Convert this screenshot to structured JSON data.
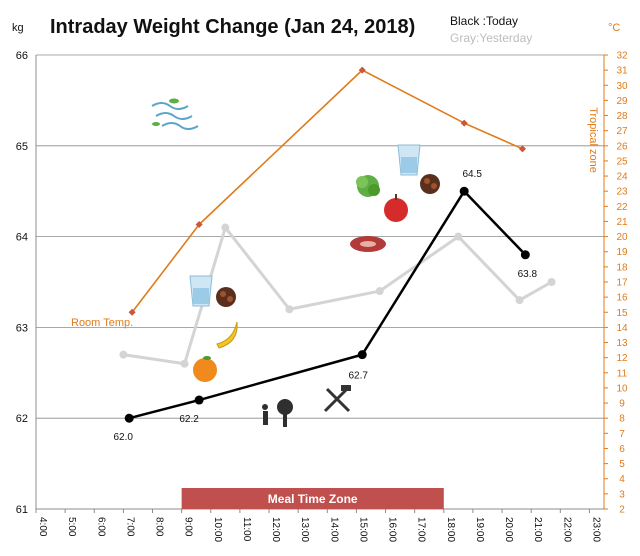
{
  "chart_data": {
    "type": "line",
    "title": "Intraday Weight Change (Jan 24, 2018)",
    "ylabel_left": "kg",
    "ylabel_right": "°C",
    "left_ticks": [
      "61",
      "62",
      "63",
      "64",
      "65",
      "66"
    ],
    "right_ticks": [
      "2",
      "3",
      "4",
      "5",
      "6",
      "7",
      "8",
      "9",
      "10",
      "11",
      "12",
      "13",
      "14",
      "15",
      "16",
      "17",
      "18",
      "19",
      "20",
      "21",
      "22",
      "23",
      "24",
      "25",
      "26",
      "27",
      "28",
      "29",
      "30",
      "31",
      "32"
    ],
    "x_ticks": [
      "4:00",
      "5:00",
      "6:00",
      "7:00",
      "8:00",
      "9:00",
      "10:00",
      "11:00",
      "12:00",
      "13:00",
      "14:00",
      "15:00",
      "16:00",
      "17:00",
      "18:00",
      "19:00",
      "20:00",
      "21:00",
      "22:00",
      "23:00"
    ],
    "ylim_left": [
      61,
      66
    ],
    "ylim_right": [
      2,
      32
    ],
    "xlim_hours": [
      4,
      23.5
    ],
    "legend": {
      "today": "Black :Today",
      "yesterday": "Gray:Yesterday"
    },
    "series": [
      {
        "name": "Black :Today",
        "axis": "left",
        "color": "#000000",
        "x": [
          7.2,
          9.6,
          15.2,
          18.7,
          20.8
        ],
        "y": [
          62.0,
          62.2,
          62.7,
          64.5,
          63.8
        ],
        "labels": [
          "62.0",
          "62.2",
          "62.7",
          "64.5",
          "63.8"
        ]
      },
      {
        "name": "Gray:Yesterday",
        "axis": "left",
        "color": "#d4d4d4",
        "x": [
          7.0,
          9.1,
          10.5,
          12.7,
          15.8,
          18.5,
          20.6,
          21.7
        ],
        "y": [
          62.7,
          62.6,
          64.1,
          63.2,
          63.4,
          64.0,
          63.3,
          63.5
        ]
      },
      {
        "name": "Room Temp.",
        "axis": "right",
        "color": "#e07b1a",
        "x": [
          7.3,
          9.6,
          15.2,
          18.7,
          20.7
        ],
        "y": [
          15.0,
          20.8,
          31.0,
          27.5,
          25.8
        ]
      }
    ],
    "annotations": {
      "room_temp": "Room Temp.",
      "tropical_zone": "Tropical zone",
      "meal_zone": "Meal Time Zone"
    },
    "meal_zone_hours": [
      9.0,
      18.0
    ]
  },
  "icons": [
    "wind-icon",
    "water-glass-icon",
    "chocolate-icon",
    "banana-icon",
    "orange-icon",
    "gardening-icon",
    "tools-icon",
    "steak-icon",
    "apple-icon",
    "lettuce-icon"
  ],
  "colors": {
    "today": "#000000",
    "yesterday": "#d4d4d4",
    "temperature": "#e07b1a",
    "meal_zone": "#c0504d",
    "gridline": "#8c8c8c"
  }
}
